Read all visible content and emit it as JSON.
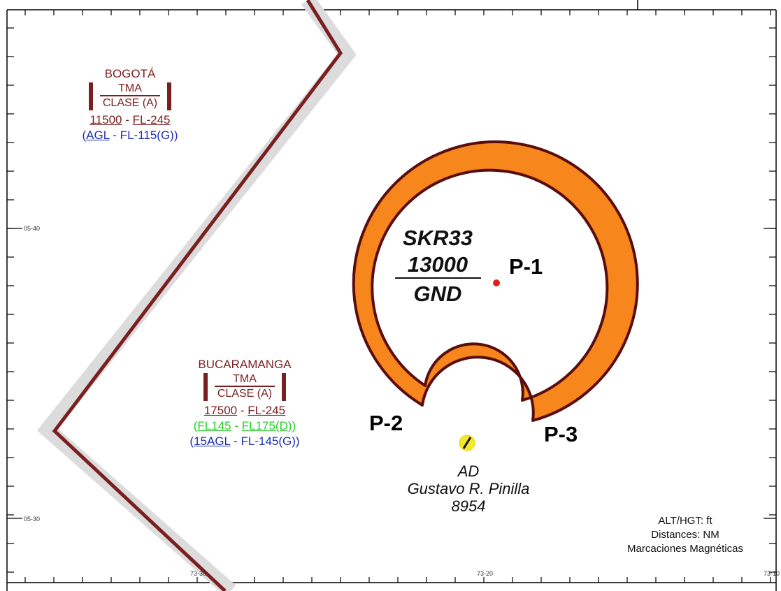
{
  "tma_bogota": {
    "name": "BOGOTÁ",
    "type": "TMA",
    "class": "CLASE (A)",
    "limits_upper": {
      "lower": "11500",
      "sep": "-",
      "upper": "FL-245"
    },
    "limits_lower": {
      "open": "(",
      "lower": "AGL",
      "sep": "-",
      "upper": "FL-115(G))"
    }
  },
  "tma_bucaramanga": {
    "name": "BUCARAMANGA",
    "type": "TMA",
    "class": "CLASE (A)",
    "limits_upper": {
      "lower": "17500",
      "sep": "-",
      "upper": "FL-245"
    },
    "limits_mid": {
      "open": "(",
      "lower": "FL145",
      "sep": "-",
      "upper": "FL175(D))"
    },
    "limits_lower": {
      "open": "(",
      "lower": "15AGL",
      "sep": "-",
      "upper": "FL-145(G))"
    }
  },
  "restricted_area": {
    "id": "SKR33",
    "upper": "13000",
    "lower": "GND",
    "fill_color": "#f7861d",
    "edge_color": "#5a0d0d"
  },
  "points": {
    "p1": "P-1",
    "p2": "P-2",
    "p3": "P-3"
  },
  "aerodrome": {
    "type": "AD",
    "name": "Gustavo R. Pinilla",
    "elevation": "8954"
  },
  "legend": {
    "alt": "ALT/HGT: ft",
    "dist": "Distances: NM",
    "bearing": "Marcaciones Magnéticas"
  },
  "coords": {
    "lat1": "05-40",
    "lat2": "05-30",
    "lon1": "73-30",
    "lon2": "73-20",
    "lon3": "73-10"
  },
  "boundary_color": "#7a1f1f"
}
